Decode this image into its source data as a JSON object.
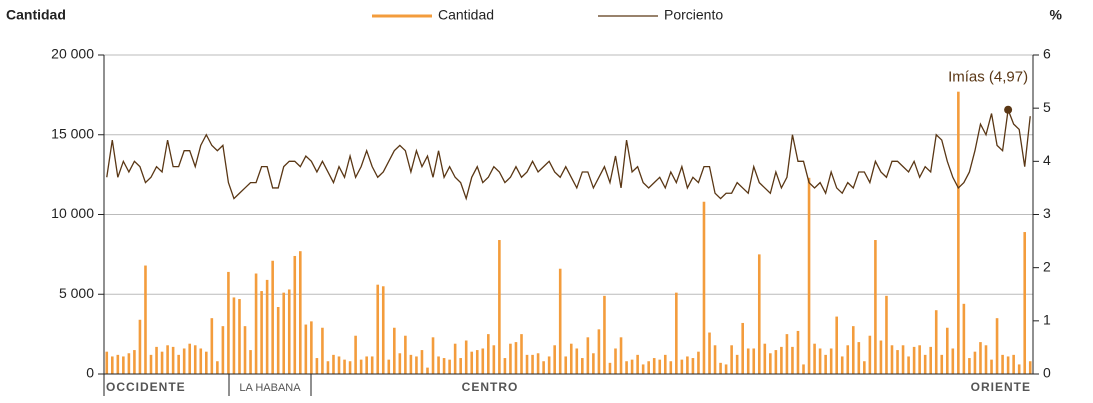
{
  "chart_data": {
    "type": "bar-line",
    "y_axis_title": "Cantidad",
    "y2_axis_title": "%",
    "groups": [
      "OCCIDENTE",
      "LA HABANA",
      "CENTRO",
      "ORIENTE"
    ],
    "categories": [
      null,
      null,
      null,
      null,
      null,
      null,
      null,
      null,
      null,
      null,
      null,
      null,
      null,
      null,
      null,
      null,
      null,
      null,
      null,
      null,
      null,
      null,
      null,
      null,
      null,
      null,
      null,
      null,
      null,
      null,
      null,
      null,
      null,
      null,
      null,
      null,
      null,
      null,
      null,
      null,
      null,
      null,
      null,
      null,
      null,
      null,
      null,
      null,
      null,
      null,
      null,
      null,
      null,
      null,
      null,
      null,
      null,
      null,
      null,
      null,
      null,
      null,
      null,
      null,
      null,
      null,
      null,
      null,
      null,
      null,
      null,
      null,
      null,
      null,
      null,
      null,
      null,
      null,
      null,
      null,
      null,
      null,
      null,
      null,
      null,
      null,
      null,
      null,
      null,
      null,
      null,
      null,
      null,
      null,
      null,
      null,
      null,
      null,
      null,
      null,
      null,
      null,
      null,
      null,
      null,
      null,
      null,
      null,
      null,
      null,
      null,
      null,
      null,
      null,
      null,
      null,
      null,
      null,
      null,
      null,
      null,
      null,
      null,
      null,
      null,
      null,
      null,
      null,
      null,
      null,
      null,
      null,
      null,
      null,
      null,
      null,
      null,
      null,
      null,
      null,
      null,
      null,
      null,
      null,
      null,
      null,
      null,
      null,
      null,
      null,
      null,
      null,
      null,
      null,
      null,
      null,
      null,
      null,
      null,
      null,
      null,
      null,
      null,
      null,
      null,
      null,
      null,
      null
    ],
    "series": [
      {
        "name": "Cantidad",
        "color": "#f39c3c",
        "kind": "bar",
        "axis": "y",
        "values": [
          1400,
          1100,
          1200,
          1100,
          1300,
          1500,
          3400,
          6800,
          1200,
          1700,
          1400,
          1800,
          1700,
          1200,
          1600,
          1900,
          1800,
          1600,
          1400,
          3500,
          800,
          3000,
          6400,
          4800,
          4700,
          3000,
          1500,
          6300,
          5200,
          5900,
          7100,
          4200,
          5100,
          5300,
          7400,
          7700,
          3100,
          3300,
          1000,
          2900,
          800,
          1200,
          1100,
          900,
          800,
          2400,
          900,
          1100,
          1100,
          5600,
          5500,
          900,
          2900,
          1300,
          2400,
          1200,
          1100,
          1500,
          400,
          2300,
          1100,
          1000,
          900,
          1900,
          1000,
          2100,
          1400,
          1500,
          1600,
          2500,
          1800,
          8400,
          1000,
          1900,
          2000,
          2500,
          1200,
          1200,
          1300,
          800,
          1100,
          1800,
          6600,
          1100,
          1900,
          1600,
          1000,
          2300,
          1300,
          2800,
          4900,
          700,
          1600,
          2300,
          800,
          900,
          1200,
          600,
          800,
          1000,
          900,
          1200,
          800,
          5100,
          900,
          1100,
          1000,
          1400,
          10800,
          2600,
          1800,
          700,
          600,
          1800,
          1200,
          3200,
          1600,
          1600,
          7500,
          1900,
          1300,
          1500,
          1700,
          2500,
          1700,
          2700,
          600,
          12300,
          1900,
          1600,
          1200,
          1600,
          3600,
          1100,
          1800,
          3000,
          2000,
          800,
          2400,
          8400,
          2100,
          4900,
          1800,
          1500,
          1800,
          1100,
          1700,
          1800,
          1200,
          1700,
          4000,
          1200,
          2900,
          1600,
          17700,
          4400,
          1000,
          1400,
          2000,
          1800,
          900,
          3500,
          1200,
          1100,
          1200,
          600,
          8900,
          800
        ]
      },
      {
        "name": "Porciento",
        "color": "#5a3715",
        "kind": "line",
        "axis": "y2",
        "values": [
          3.7,
          4.4,
          3.7,
          4.0,
          3.8,
          4.0,
          3.9,
          3.6,
          3.7,
          3.9,
          3.8,
          4.4,
          3.9,
          3.9,
          4.2,
          4.2,
          3.9,
          4.3,
          4.5,
          4.3,
          4.2,
          4.3,
          3.6,
          3.3,
          3.4,
          3.5,
          3.6,
          3.6,
          3.9,
          3.9,
          3.5,
          3.5,
          3.9,
          4.0,
          4.0,
          3.9,
          4.1,
          4.0,
          3.8,
          4.0,
          3.8,
          3.6,
          3.9,
          3.7,
          4.1,
          3.7,
          3.9,
          4.2,
          3.9,
          3.7,
          3.8,
          4.0,
          4.2,
          4.3,
          4.2,
          3.8,
          4.2,
          3.9,
          4.1,
          3.7,
          4.2,
          3.7,
          3.9,
          3.7,
          3.6,
          3.3,
          3.7,
          3.9,
          3.6,
          3.7,
          3.9,
          3.8,
          3.6,
          3.7,
          3.9,
          3.7,
          3.8,
          4.0,
          3.8,
          3.9,
          4.0,
          3.8,
          3.7,
          3.9,
          3.7,
          3.5,
          3.8,
          3.8,
          3.5,
          3.7,
          3.9,
          3.6,
          4.1,
          3.5,
          4.4,
          3.8,
          3.9,
          3.6,
          3.5,
          3.6,
          3.7,
          3.5,
          3.8,
          3.6,
          3.9,
          3.5,
          3.7,
          3.6,
          3.9,
          3.9,
          3.4,
          3.3,
          3.4,
          3.4,
          3.6,
          3.5,
          3.4,
          3.9,
          3.6,
          3.5,
          3.4,
          3.8,
          3.5,
          3.7,
          4.5,
          4.0,
          4.0,
          3.6,
          3.5,
          3.6,
          3.4,
          3.8,
          3.5,
          3.4,
          3.6,
          3.5,
          3.8,
          3.8,
          3.6,
          4.0,
          3.8,
          3.7,
          4.0,
          4.0,
          3.9,
          3.8,
          4.0,
          3.7,
          3.9,
          3.8,
          4.5,
          4.4,
          4.0,
          3.7,
          3.5,
          3.6,
          3.8,
          4.2,
          4.7,
          4.5,
          4.9,
          4.3,
          4.2,
          4.97,
          4.7,
          4.6,
          3.9,
          4.85
        ]
      }
    ],
    "annotation": {
      "label": "Imías (4,97)",
      "value": 4.97
    },
    "ylim": [
      0,
      20000
    ],
    "yticks": [
      0,
      {
        "value": 5000,
        "label": "5 000"
      },
      {
        "value": 10000,
        "label": "10 000"
      },
      {
        "value": 15000,
        "label": "15 000"
      },
      {
        "value": 20000,
        "label": "20 000"
      }
    ],
    "y2lim": [
      0,
      6
    ],
    "y2ticks": [
      0,
      1,
      2,
      3,
      4,
      5,
      6
    ],
    "grid": true
  }
}
